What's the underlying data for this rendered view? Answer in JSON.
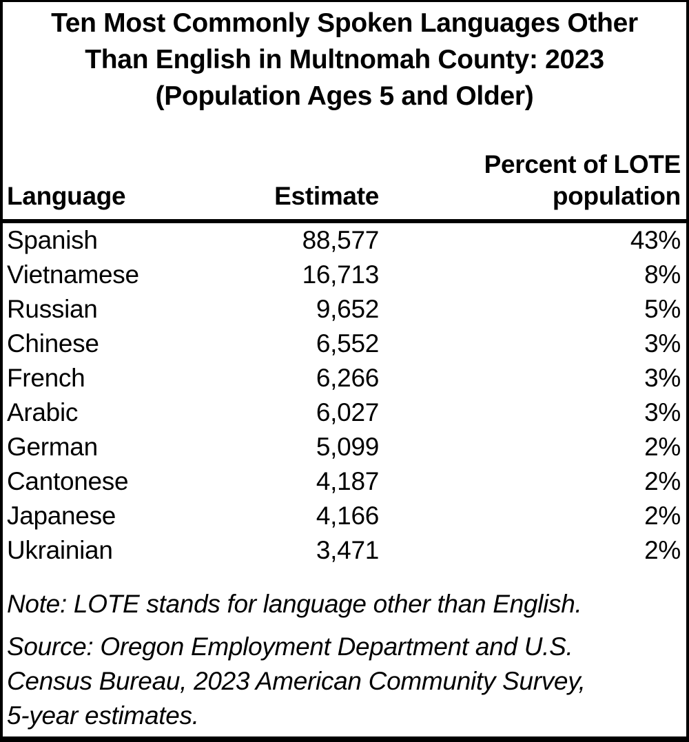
{
  "figure": {
    "title_lines": [
      "Ten Most Commonly Spoken Languages Other",
      "Than English in Multnomah County: 2023",
      "(Population Ages 5 and Older)"
    ]
  },
  "table": {
    "columns": [
      {
        "label": "Language",
        "align": "left"
      },
      {
        "label": "Estimate",
        "align": "right"
      },
      {
        "label": "Percent of LOTE population",
        "align": "right"
      }
    ],
    "rows": [
      {
        "language": "Spanish",
        "estimate": "88,577",
        "percent": "43%"
      },
      {
        "language": "Vietnamese",
        "estimate": "16,713",
        "percent": "8%"
      },
      {
        "language": "Russian",
        "estimate": "9,652",
        "percent": "5%"
      },
      {
        "language": "Chinese",
        "estimate": "6,552",
        "percent": "3%"
      },
      {
        "language": "French",
        "estimate": "6,266",
        "percent": "3%"
      },
      {
        "language": "Arabic",
        "estimate": "6,027",
        "percent": "3%"
      },
      {
        "language": "German",
        "estimate": "5,099",
        "percent": "2%"
      },
      {
        "language": "Cantonese",
        "estimate": "4,187",
        "percent": "2%"
      },
      {
        "language": "Japanese",
        "estimate": "4,166",
        "percent": "2%"
      },
      {
        "language": "Ukrainian",
        "estimate": "3,471",
        "percent": "2%"
      }
    ]
  },
  "footnotes": {
    "note": "Note: LOTE stands for language other than English.",
    "source_lines": [
      "Source: Oregon Employment Department and U.S.",
      "Census Bureau, 2023 American Community Survey,",
      "5-year estimates."
    ]
  },
  "colors": {
    "text": "#000000",
    "background": "#ffffff",
    "border": "#000000"
  },
  "chart_data": {
    "type": "table",
    "title": "Ten Most Commonly Spoken Languages Other Than English in Multnomah County: 2023 (Population Ages 5 and Older)",
    "columns": [
      "Language",
      "Estimate",
      "Percent of LOTE population"
    ],
    "rows": [
      [
        "Spanish",
        88577,
        "43%"
      ],
      [
        "Vietnamese",
        16713,
        "8%"
      ],
      [
        "Russian",
        9652,
        "5%"
      ],
      [
        "Chinese",
        6552,
        "3%"
      ],
      [
        "French",
        6266,
        "3%"
      ],
      [
        "Arabic",
        6027,
        "3%"
      ],
      [
        "German",
        5099,
        "2%"
      ],
      [
        "Cantonese",
        4187,
        "2%"
      ],
      [
        "Japanese",
        4166,
        "2%"
      ],
      [
        "Ukrainian",
        3471,
        "2%"
      ]
    ],
    "note": "Note: LOTE stands for language other than English.",
    "source": "Source: Oregon Employment Department and U.S. Census Bureau, 2023 American Community Survey, 5-year estimates."
  }
}
